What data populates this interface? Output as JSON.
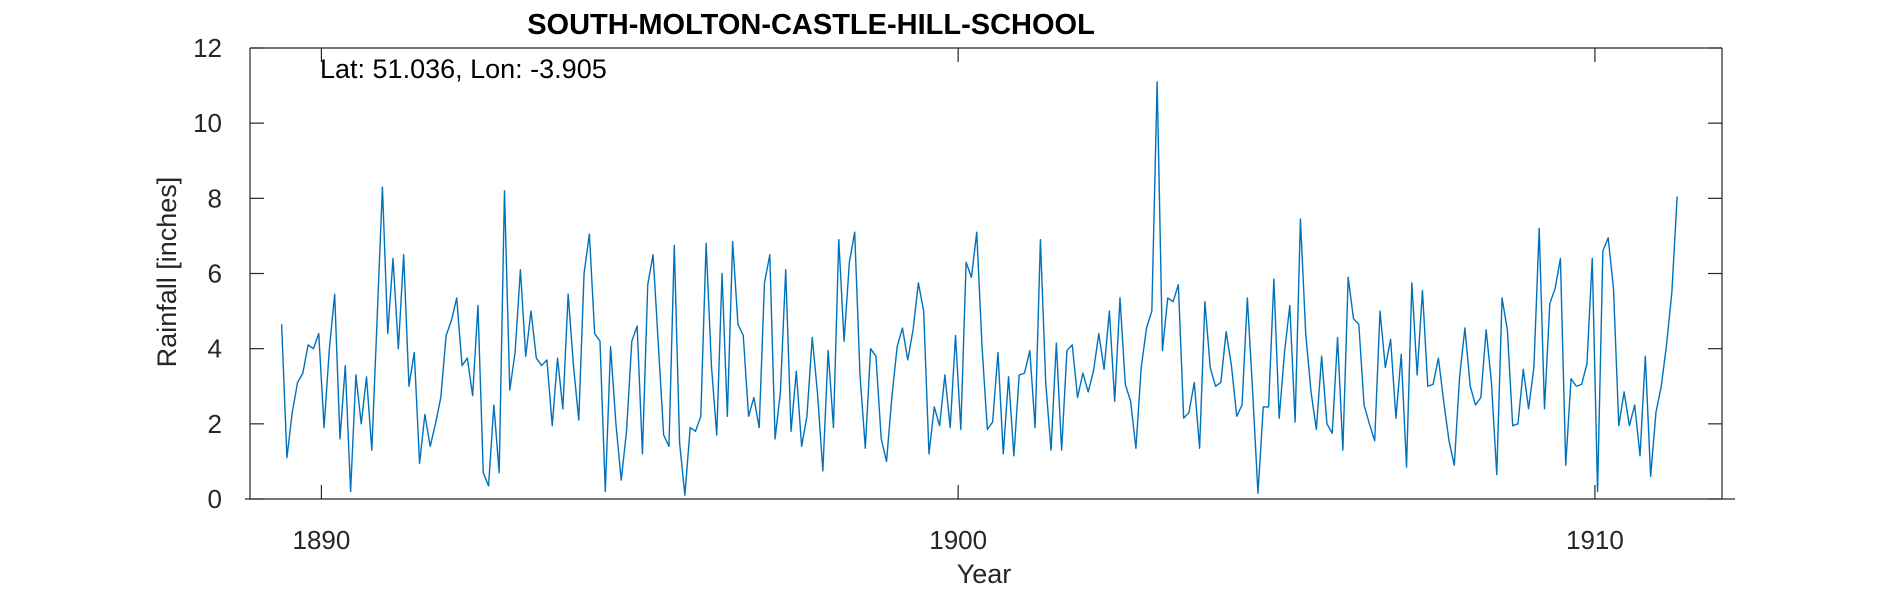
{
  "chart_data": {
    "type": "line",
    "title": "SOUTH-MOLTON-CASTLE-HILL-SCHOOL",
    "xlabel": "Year",
    "ylabel": "Rainfall [inches]",
    "annotation": "Lat: 51.036, Lon: -3.905",
    "xlim": [
      1888.8,
      1912.2
    ],
    "ylim": [
      0,
      12
    ],
    "x_ticks": [
      1890,
      1900,
      1910
    ],
    "x_tick_labels": [
      "1890",
      "1900",
      "1910"
    ],
    "y_ticks": [
      0,
      2,
      4,
      6,
      8,
      10,
      12
    ],
    "y_tick_labels": [
      "0",
      "2",
      "4",
      "6",
      "8",
      "10",
      "12"
    ],
    "grid": false,
    "line_color": "#0072BD",
    "start_year": 1889.375,
    "step_years": 0.0833333,
    "series": [
      {
        "values": [
          4.65,
          1.1,
          2.3,
          3.1,
          3.35,
          4.1,
          4.0,
          4.4,
          1.9,
          4.0,
          5.45,
          1.6,
          3.55,
          0.2,
          3.3,
          2.0,
          3.25,
          1.3,
          4.8,
          8.3,
          4.4,
          6.4,
          4.0,
          6.5,
          3.0,
          3.9,
          0.95,
          2.25,
          1.4,
          2.0,
          2.7,
          4.35,
          4.75,
          5.35,
          3.55,
          3.75,
          2.75,
          5.15,
          0.7,
          0.35,
          2.5,
          0.7,
          8.2,
          2.9,
          3.9,
          6.1,
          3.8,
          5.0,
          3.75,
          3.55,
          3.7,
          1.95,
          3.75,
          2.4,
          5.45,
          3.55,
          2.1,
          6.0,
          7.05,
          4.4,
          4.2,
          0.2,
          4.05,
          2.0,
          0.5,
          1.8,
          4.2,
          4.6,
          1.2,
          5.7,
          6.5,
          4.1,
          1.7,
          1.4,
          6.75,
          1.5,
          0.1,
          1.9,
          1.8,
          2.2,
          6.8,
          3.55,
          1.7,
          6.0,
          2.2,
          6.85,
          4.65,
          4.35,
          2.2,
          2.7,
          1.9,
          5.75,
          6.5,
          1.6,
          2.85,
          6.1,
          1.8,
          3.4,
          1.4,
          2.2,
          4.3,
          2.8,
          0.75,
          3.95,
          1.9,
          6.9,
          4.2,
          6.3,
          7.1,
          3.3,
          1.35,
          4.0,
          3.8,
          1.6,
          1.0,
          2.7,
          4.05,
          4.55,
          3.7,
          4.5,
          5.75,
          5.0,
          1.2,
          2.45,
          1.95,
          3.3,
          1.9,
          4.35,
          1.85,
          6.3,
          5.9,
          7.1,
          4.05,
          1.85,
          2.05,
          3.9,
          1.2,
          3.25,
          1.15,
          3.3,
          3.35,
          3.95,
          1.9,
          6.9,
          3.1,
          1.3,
          4.15,
          1.3,
          3.95,
          4.1,
          2.7,
          3.35,
          2.85,
          3.4,
          4.4,
          3.45,
          5.0,
          2.6,
          5.35,
          3.05,
          2.6,
          1.35,
          3.5,
          4.55,
          5.0,
          11.1,
          3.95,
          5.35,
          5.25,
          5.7,
          2.15,
          2.3,
          3.1,
          1.35,
          5.25,
          3.5,
          3.0,
          3.1,
          4.45,
          3.55,
          2.2,
          2.5,
          5.35,
          2.85,
          0.15,
          2.45,
          2.45,
          5.85,
          2.15,
          3.9,
          5.15,
          2.05,
          7.45,
          4.4,
          2.85,
          1.85,
          3.8,
          2.0,
          1.75,
          4.3,
          1.3,
          5.9,
          4.8,
          4.65,
          2.5,
          2.0,
          1.55,
          5.0,
          3.5,
          4.25,
          2.15,
          3.85,
          0.85,
          5.75,
          3.3,
          5.55,
          3.0,
          3.05,
          3.75,
          2.6,
          1.55,
          0.9,
          3.25,
          4.55,
          3.0,
          2.5,
          2.7,
          4.5,
          3.1,
          0.65,
          5.35,
          4.5,
          1.95,
          2.0,
          3.45,
          2.4,
          3.5,
          7.2,
          2.4,
          5.2,
          5.6,
          6.4,
          0.9,
          3.2,
          3.0,
          3.05,
          3.6,
          6.4,
          0.2,
          6.6,
          6.95,
          5.6,
          1.95,
          2.85,
          1.95,
          2.5,
          1.15,
          3.8,
          0.6,
          2.3,
          3.0,
          4.1,
          5.5,
          8.05
        ]
      }
    ]
  }
}
